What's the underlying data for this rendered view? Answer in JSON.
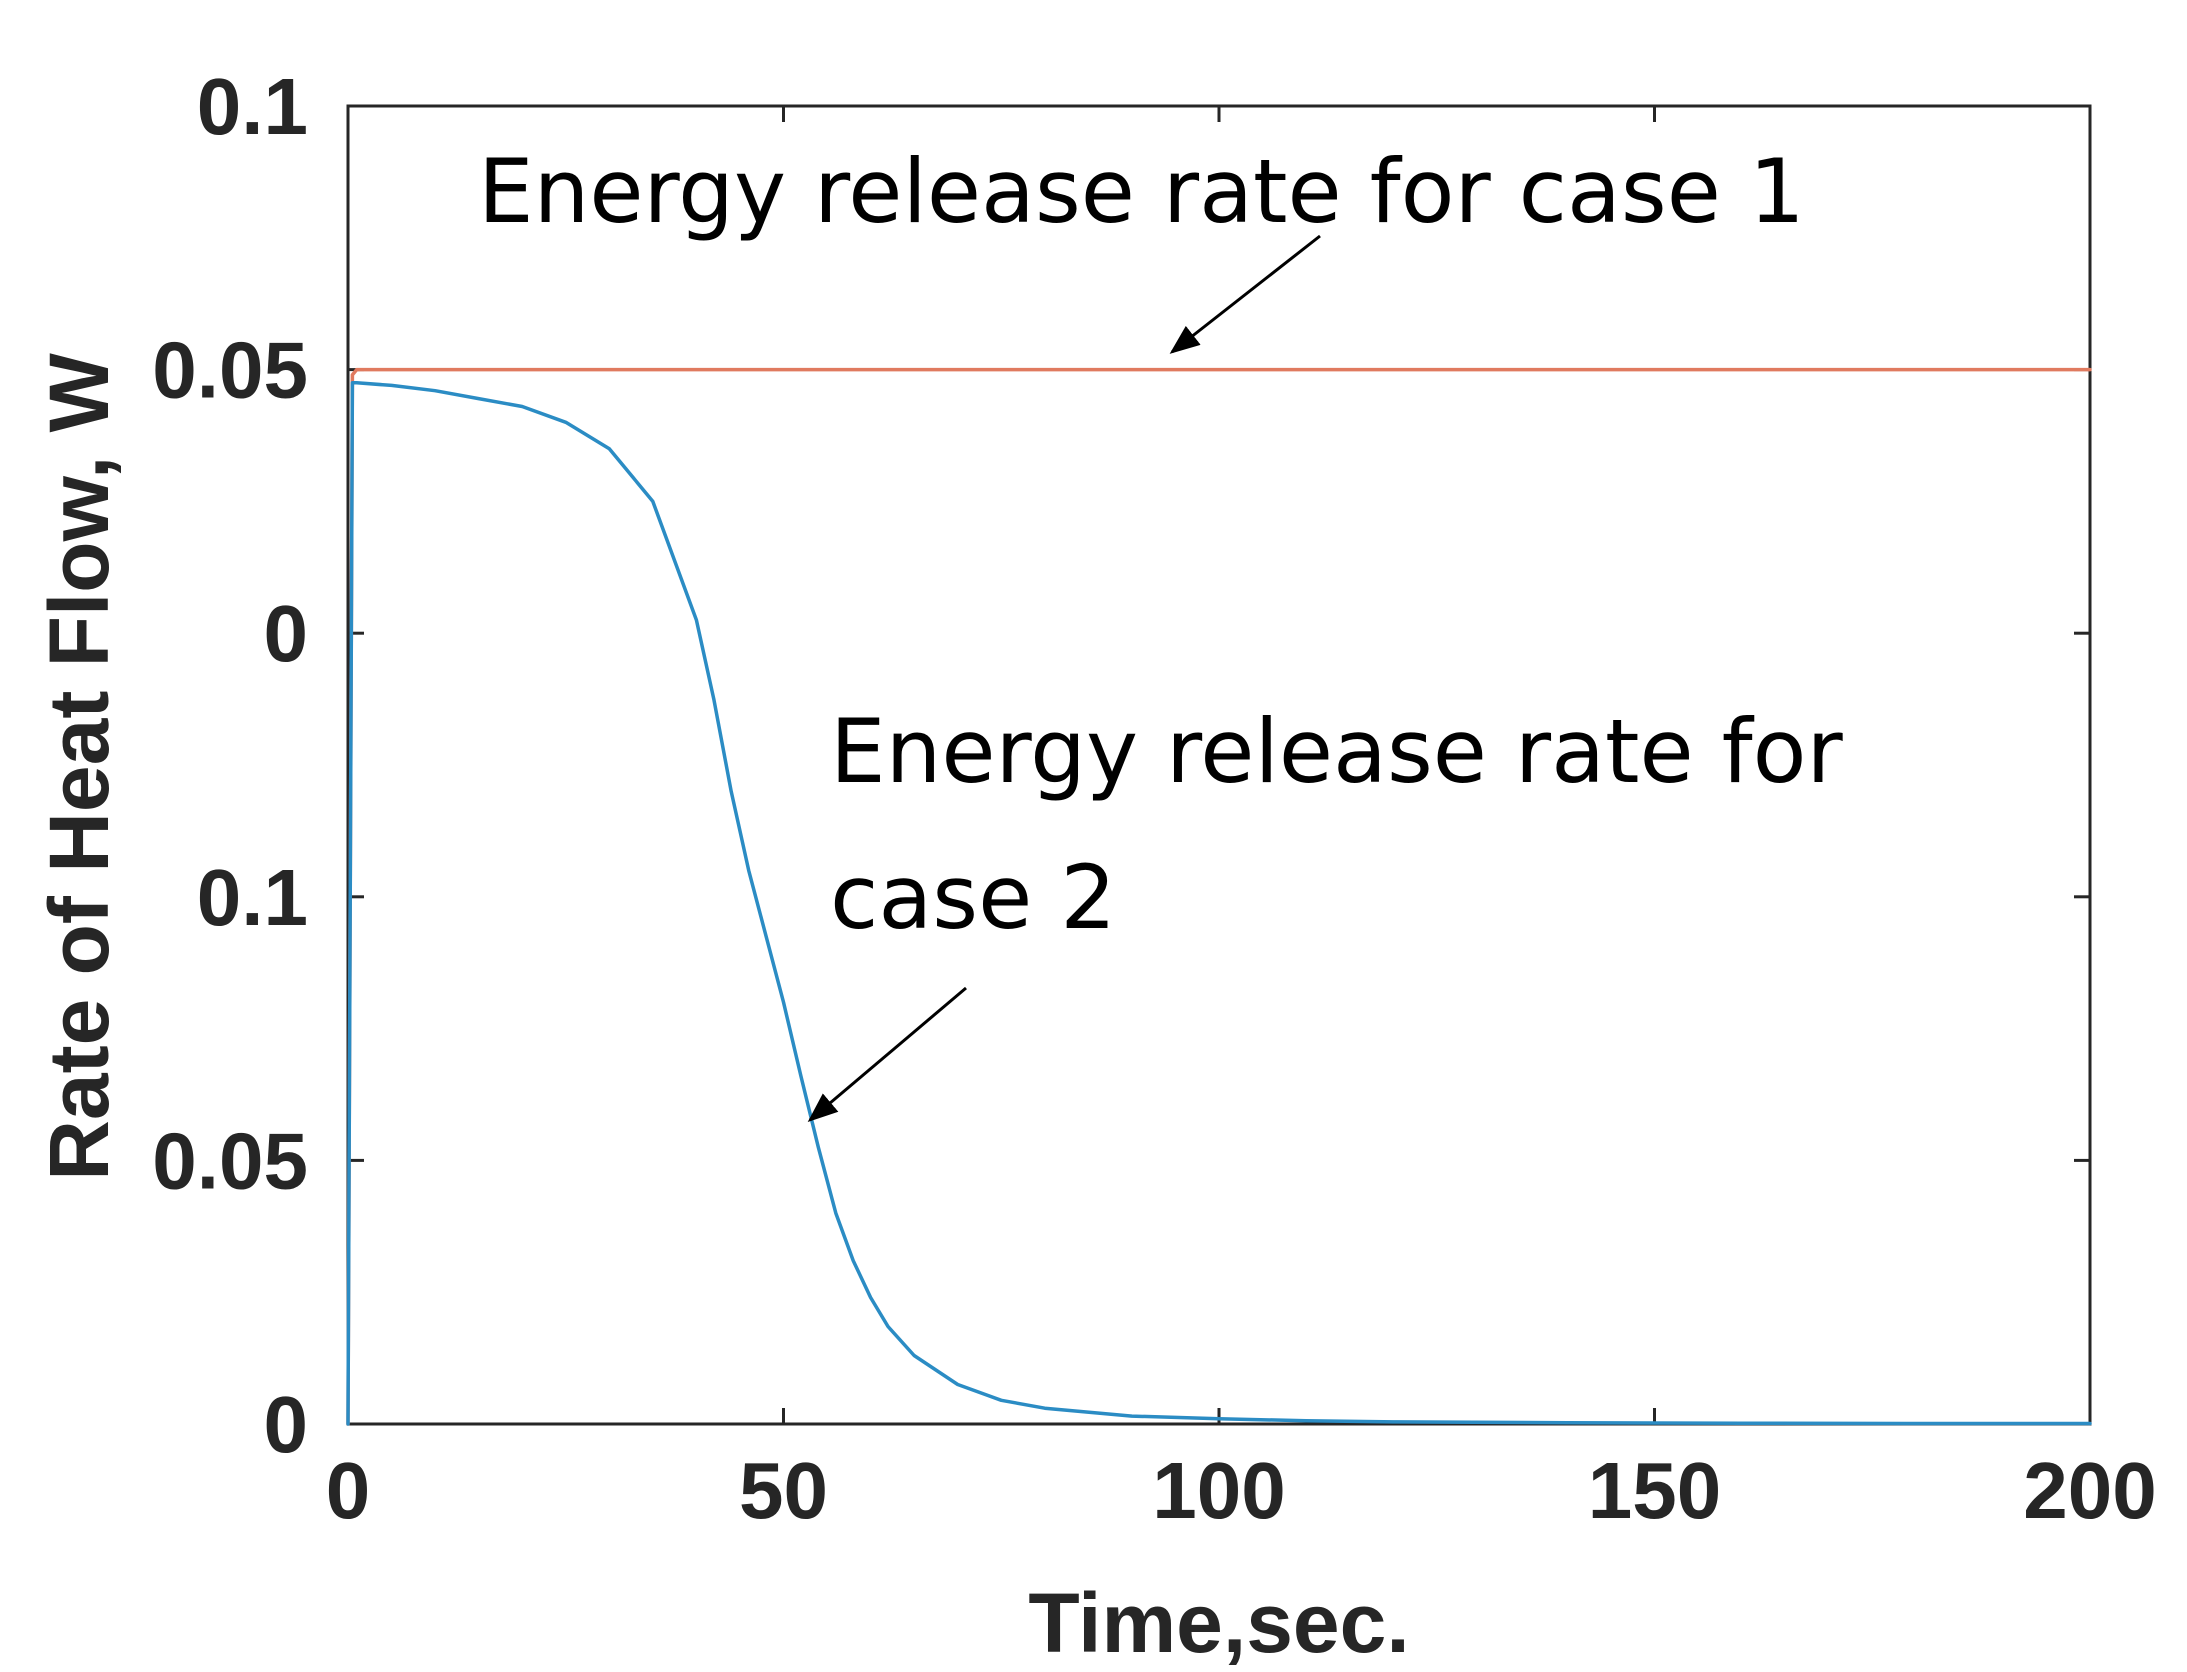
{
  "chart_data": {
    "type": "line",
    "title": "",
    "xlabel": "Time,sec.",
    "ylabel": "Rate of Heat Flow, W",
    "xlim": [
      0,
      200
    ],
    "ylim": [
      0,
      5
    ],
    "x_ticks": [
      0,
      50,
      100,
      150,
      200
    ],
    "x_tick_labels": [
      "0",
      "50",
      "100",
      "150",
      "200"
    ],
    "y_ticks": [
      0,
      1,
      2,
      3,
      4,
      5
    ],
    "y_tick_labels": [
      "0",
      "0.05",
      "0.1",
      "0",
      "0.05",
      "0.1"
    ],
    "grid": false,
    "series": [
      {
        "name": "case 1",
        "color": "#e07a5f",
        "x": [
          0,
          0.5,
          1,
          200
        ],
        "y": [
          0,
          3.98,
          4.0,
          4.0
        ]
      },
      {
        "name": "case 2",
        "color": "#2b8cc4",
        "x": [
          0,
          0.5,
          1,
          5,
          10,
          15,
          20,
          25,
          30,
          35,
          40,
          42,
          44,
          46,
          48,
          50,
          52,
          54,
          56,
          58,
          60,
          62,
          65,
          70,
          75,
          80,
          90,
          100,
          110,
          120,
          140,
          160,
          180,
          200
        ],
        "y": [
          0,
          3.95,
          3.95,
          3.94,
          3.92,
          3.89,
          3.86,
          3.8,
          3.7,
          3.5,
          3.05,
          2.75,
          2.4,
          2.1,
          1.85,
          1.6,
          1.32,
          1.05,
          0.8,
          0.62,
          0.48,
          0.37,
          0.26,
          0.15,
          0.09,
          0.06,
          0.03,
          0.02,
          0.012,
          0.008,
          0.005,
          0.003,
          0.002,
          0.002
        ]
      }
    ],
    "annotations": [
      {
        "lines": [
          "Energy release rate for case 1"
        ],
        "points_to": "case 1"
      },
      {
        "lines": [
          "Energy release rate for",
          "case 2"
        ],
        "points_to": "case 2"
      }
    ]
  }
}
